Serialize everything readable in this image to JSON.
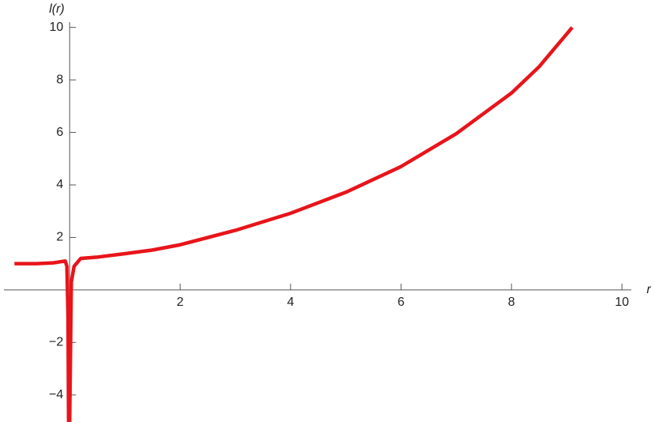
{
  "chart_data": {
    "type": "line",
    "x_label": "r",
    "y_label": "l(r)",
    "xlim": [
      -1.19,
      10.17
    ],
    "ylim": [
      -5.0,
      10.2
    ],
    "xticks": [
      2,
      4,
      6,
      8,
      10
    ],
    "yticks": [
      {
        "value": -4,
        "label": "−4"
      },
      {
        "value": -2,
        "label": "−2"
      },
      2,
      4,
      6,
      8,
      10
    ],
    "x": [
      -1.0,
      -0.6,
      -0.3,
      -0.15,
      -0.08,
      -0.05,
      -0.03,
      -0.02,
      0.0,
      0.03,
      0.08,
      0.2,
      0.5,
      1,
      1.5,
      2,
      3,
      4,
      5,
      6,
      7,
      8,
      8.5,
      9.1
    ],
    "series": [
      {
        "color": "#e8141a",
        "values": [
          1.0,
          1.0,
          1.03,
          1.08,
          1.1,
          0.9,
          -1,
          -5,
          -5,
          0.3,
          0.9,
          1.2,
          1.25,
          1.38,
          1.52,
          1.72,
          2.27,
          2.92,
          3.72,
          4.7,
          5.95,
          7.5,
          8.5,
          10.0
        ]
      }
    ]
  }
}
